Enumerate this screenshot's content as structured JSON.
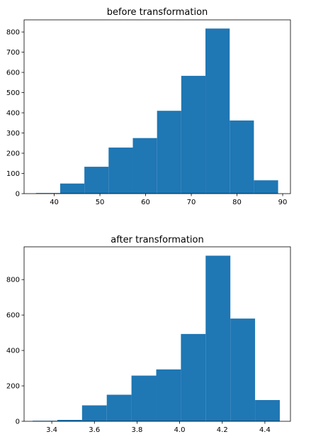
{
  "chart_data": [
    {
      "type": "bar",
      "chart_kind": "histogram",
      "title": "before transformation",
      "xlabel": "",
      "ylabel": "",
      "xlim": [
        33.4,
        91.7
      ],
      "ylim": [
        0,
        860
      ],
      "xticks": [
        40,
        50,
        60,
        70,
        80,
        90
      ],
      "xtick_labels": [
        "40",
        "50",
        "60",
        "70",
        "80",
        "90"
      ],
      "yticks": [
        0,
        100,
        200,
        300,
        400,
        500,
        600,
        700,
        800
      ],
      "ytick_labels": [
        "0",
        "100",
        "200",
        "300",
        "400",
        "500",
        "600",
        "700",
        "800"
      ],
      "bin_edges": [
        36.0,
        41.3,
        46.6,
        51.9,
        57.2,
        62.5,
        67.8,
        73.1,
        78.4,
        83.7,
        89.0
      ],
      "values": [
        3,
        50,
        133,
        228,
        275,
        410,
        583,
        817,
        362,
        66
      ],
      "bar_color": "#1f77b4",
      "grid": false,
      "legend": "none"
    },
    {
      "type": "bar",
      "chart_kind": "histogram",
      "title": "after transformation",
      "xlabel": "",
      "ylabel": "",
      "xlim": [
        3.27,
        4.52
      ],
      "ylim": [
        0,
        985
      ],
      "xticks": [
        3.4,
        3.6,
        3.8,
        4.0,
        4.2,
        4.4
      ],
      "xtick_labels": [
        "3.4",
        "3.6",
        "3.8",
        "4.0",
        "4.2",
        "4.4"
      ],
      "yticks": [
        0,
        200,
        400,
        600,
        800
      ],
      "ytick_labels": [
        "0",
        "200",
        "400",
        "600",
        "800"
      ],
      "bin_edges": [
        3.31,
        3.426,
        3.542,
        3.658,
        3.774,
        3.89,
        4.006,
        4.122,
        4.238,
        4.354,
        4.47
      ],
      "values": [
        3,
        8,
        90,
        150,
        258,
        293,
        493,
        935,
        580,
        120
      ],
      "bar_color": "#1f77b4",
      "grid": false,
      "legend": "none"
    }
  ]
}
